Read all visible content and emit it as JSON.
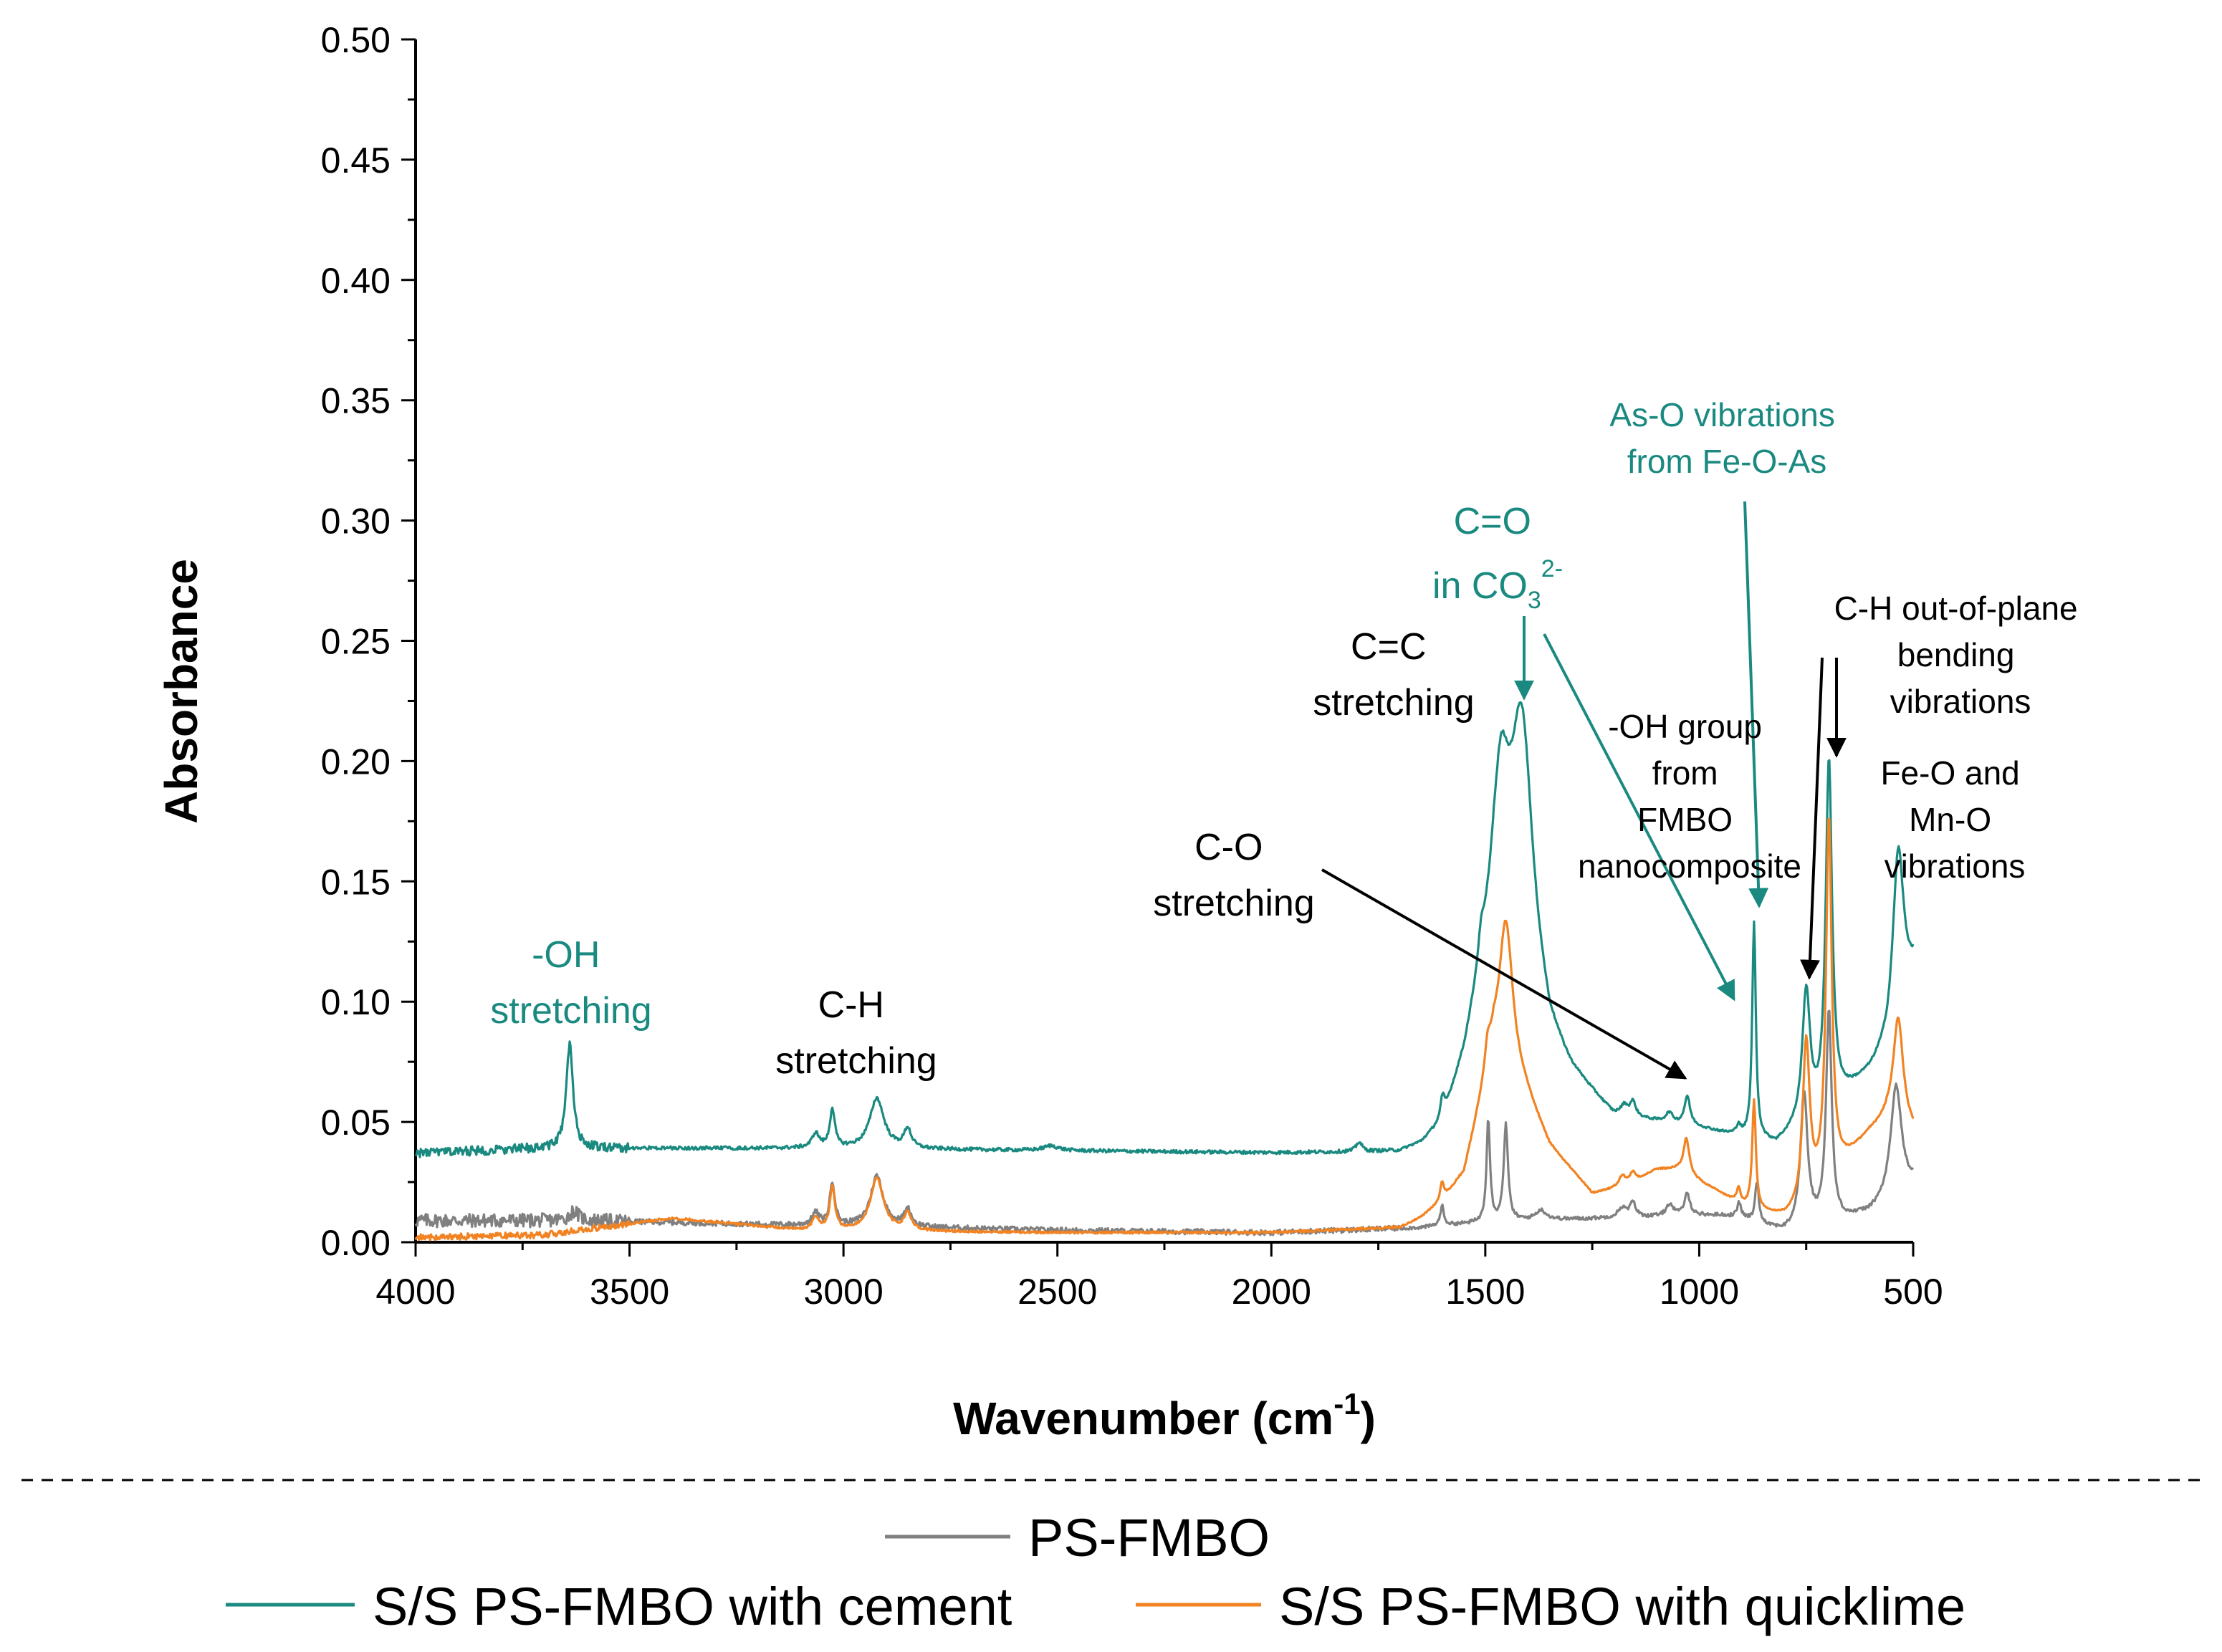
{
  "chart_data": {
    "type": "line",
    "title": "",
    "xlabel": "Wavenumber (cm",
    "xlabel_sup": "-1",
    "xlabel_close": ")",
    "ylabel": "Absorbance",
    "xlim": [
      4000,
      500
    ],
    "ylim": [
      0.0,
      0.5
    ],
    "x_ticks": [
      4000,
      3500,
      3000,
      2500,
      2000,
      1500,
      1000,
      500
    ],
    "x_tick_labels": [
      "4000",
      "3500",
      "3000",
      "2500",
      "2000",
      "1500",
      "1000",
      "500"
    ],
    "y_ticks": [
      0.0,
      0.05,
      0.1,
      0.15,
      0.2,
      0.25,
      0.3,
      0.35,
      0.4,
      0.45,
      0.5
    ],
    "y_tick_labels": [
      "0.00",
      "0.05",
      "0.10",
      "0.15",
      "0.20",
      "0.25",
      "0.30",
      "0.35",
      "0.40",
      "0.45",
      "0.50"
    ],
    "grid": false,
    "legend_position": "bottom",
    "series": [
      {
        "name": "PS-FMBO",
        "color": "#808080",
        "baseline": [
          [
            4000,
            0.009
          ],
          [
            3600,
            0.009
          ],
          [
            3100,
            0.007
          ],
          [
            2500,
            0.005
          ],
          [
            2000,
            0.004
          ],
          [
            1650,
            0.006
          ],
          [
            1600,
            0.007
          ],
          [
            1400,
            0.009
          ],
          [
            1200,
            0.01
          ],
          [
            1000,
            0.011
          ],
          [
            950,
            0.011
          ],
          [
            900,
            0.01
          ],
          [
            800,
            0.004
          ],
          [
            760,
            0.006
          ],
          [
            700,
            0.007
          ],
          [
            600,
            0.012
          ],
          [
            500,
            0.024
          ]
        ],
        "peaks": [
          [
            3630,
            0.004,
            12
          ],
          [
            3065,
            0.005,
            10
          ],
          [
            3026,
            0.018,
            7
          ],
          [
            2922,
            0.021,
            18
          ],
          [
            2850,
            0.007,
            10
          ],
          [
            1601,
            0.008,
            5
          ],
          [
            1493,
            0.043,
            5
          ],
          [
            1452,
            0.04,
            6
          ],
          [
            1370,
            0.004,
            15
          ],
          [
            1180,
            0.004,
            12
          ],
          [
            1155,
            0.006,
            8
          ],
          [
            1069,
            0.005,
            10
          ],
          [
            1028,
            0.009,
            8
          ],
          [
            907,
            0.006,
            5
          ],
          [
            865,
            0.017,
            5
          ],
          [
            755,
            0.055,
            10
          ],
          [
            697,
            0.088,
            8
          ],
          [
            540,
            0.046,
            15
          ]
        ],
        "noise": 0.0018
      },
      {
        "name": "S/S PS-FMBO with cement",
        "color": "#1a8a80",
        "baseline": [
          [
            4000,
            0.037
          ],
          [
            3700,
            0.039
          ],
          [
            3300,
            0.039
          ],
          [
            3100,
            0.039
          ],
          [
            2500,
            0.038
          ],
          [
            2000,
            0.037
          ],
          [
            1700,
            0.037
          ],
          [
            1650,
            0.04
          ],
          [
            1600,
            0.048
          ],
          [
            1550,
            0.075
          ],
          [
            1500,
            0.115
          ],
          [
            1480,
            0.13
          ],
          [
            1440,
            0.13
          ],
          [
            1400,
            0.12
          ],
          [
            1350,
            0.085
          ],
          [
            1300,
            0.07
          ],
          [
            1200,
            0.052
          ],
          [
            1000,
            0.047
          ],
          [
            900,
            0.043
          ],
          [
            870,
            0.042
          ],
          [
            820,
            0.04
          ],
          [
            780,
            0.045
          ],
          [
            720,
            0.05
          ],
          [
            650,
            0.062
          ],
          [
            600,
            0.07
          ],
          [
            560,
            0.08
          ],
          [
            500,
            0.112
          ]
        ],
        "peaks": [
          [
            3640,
            0.044,
            9
          ],
          [
            3065,
            0.006,
            10
          ],
          [
            3026,
            0.016,
            7
          ],
          [
            2922,
            0.021,
            20
          ],
          [
            2850,
            0.008,
            10
          ],
          [
            2515,
            0.002,
            20
          ],
          [
            1795,
            0.004,
            8
          ],
          [
            1600,
            0.01,
            6
          ],
          [
            1510,
            0.01,
            8
          ],
          [
            1463,
            0.058,
            22
          ],
          [
            1415,
            0.09,
            28
          ],
          [
            1175,
            0.004,
            10
          ],
          [
            1155,
            0.006,
            8
          ],
          [
            1070,
            0.004,
            10
          ],
          [
            1028,
            0.012,
            8
          ],
          [
            908,
            0.004,
            6
          ],
          [
            872,
            0.09,
            5
          ],
          [
            750,
            0.055,
            11
          ],
          [
            697,
            0.145,
            9
          ],
          [
            535,
            0.07,
            15
          ]
        ],
        "noise": 0.0012
      },
      {
        "name": "S/S PS-FMBO with quicklime",
        "color": "#f28322",
        "baseline": [
          [
            4000,
            0.002
          ],
          [
            3700,
            0.003
          ],
          [
            3400,
            0.01
          ],
          [
            3100,
            0.005
          ],
          [
            2500,
            0.004
          ],
          [
            2000,
            0.004
          ],
          [
            1700,
            0.006
          ],
          [
            1650,
            0.01
          ],
          [
            1600,
            0.017
          ],
          [
            1550,
            0.028
          ],
          [
            1500,
            0.065
          ],
          [
            1480,
            0.08
          ],
          [
            1440,
            0.075
          ],
          [
            1400,
            0.06
          ],
          [
            1350,
            0.04
          ],
          [
            1300,
            0.03
          ],
          [
            1250,
            0.02
          ],
          [
            1200,
            0.022
          ],
          [
            1150,
            0.025
          ],
          [
            1100,
            0.03
          ],
          [
            1050,
            0.03
          ],
          [
            1000,
            0.025
          ],
          [
            950,
            0.02
          ],
          [
            900,
            0.015
          ],
          [
            850,
            0.012
          ],
          [
            800,
            0.01
          ],
          [
            760,
            0.012
          ],
          [
            700,
            0.025
          ],
          [
            650,
            0.035
          ],
          [
            600,
            0.045
          ],
          [
            560,
            0.05
          ],
          [
            500,
            0.045
          ]
        ],
        "peaks": [
          [
            3065,
            0.005,
            10
          ],
          [
            3026,
            0.018,
            7
          ],
          [
            2922,
            0.022,
            18
          ],
          [
            2850,
            0.007,
            10
          ],
          [
            1601,
            0.008,
            5
          ],
          [
            1495,
            0.01,
            8
          ],
          [
            1452,
            0.057,
            18
          ],
          [
            1180,
            0.004,
            10
          ],
          [
            1155,
            0.004,
            8
          ],
          [
            1030,
            0.015,
            8
          ],
          [
            908,
            0.006,
            5
          ],
          [
            872,
            0.045,
            5
          ],
          [
            750,
            0.068,
            10
          ],
          [
            697,
            0.15,
            8
          ],
          [
            535,
            0.045,
            14
          ]
        ],
        "noise": 0.0008
      }
    ],
    "annotations": {
      "oh_stretching": {
        "line1": "-OH",
        "line2": "stretching",
        "color": "#1a8a80"
      },
      "ch_stretching": {
        "line1": "C-H",
        "line2": "stretching",
        "color": "#000000"
      },
      "cc_stretching": {
        "line1": "C=C",
        "line2": "stretching",
        "color": "#000000"
      },
      "co_carbonate": {
        "line1": "C=O",
        "line2_prefix": "in CO",
        "line2_sub": "3",
        "line2_sup": "2-",
        "color": "#1a8a80"
      },
      "co_stretching": {
        "line1": "C-O",
        "line2": "stretching",
        "color": "#000000"
      },
      "oh_group": {
        "line1": "-OH group",
        "line2": "from",
        "line3": "FMBO",
        "line4": "nanocomposite",
        "color": "#000000"
      },
      "as_o": {
        "line1": "As-O vibrations",
        "line2": "from Fe-O-As",
        "color": "#1a8a80"
      },
      "ch_oop": {
        "line1": "C-H out-of-plane",
        "line2": "bending",
        "line3": "vibrations",
        "color": "#000000"
      },
      "feo_mno": {
        "line1": "Fe-O and",
        "line2": "Mn-O",
        "line3": "vibrations",
        "color": "#000000"
      }
    }
  }
}
